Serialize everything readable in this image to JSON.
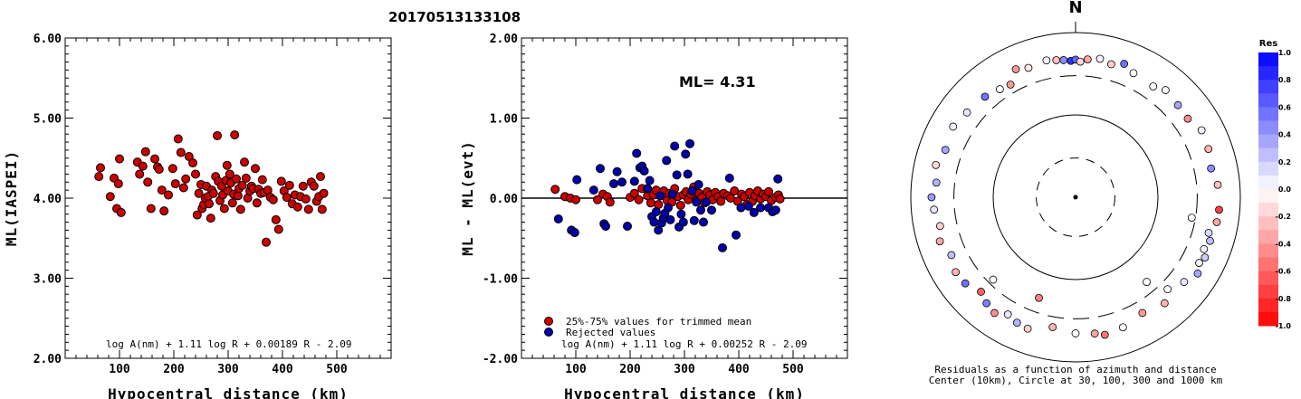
{
  "chart_data": [
    {
      "type": "scatter",
      "title": "20170513133108",
      "xlabel": "Hypocentral distance (km)",
      "ylabel": "ML(IASPEI)",
      "xlim": [
        0,
        600
      ],
      "ylim": [
        2.0,
        6.0
      ],
      "xticks": [
        "100",
        "200",
        "300",
        "400",
        "500"
      ],
      "yticks": [
        "2.00",
        "3.00",
        "4.00",
        "5.00",
        "6.00"
      ],
      "formula": "log A(nm) + 1.11 log R + 0.00189 R - 2.09",
      "marker_color": "#cc0000",
      "x": [
        62,
        65,
        83,
        90,
        95,
        98,
        100,
        103,
        133,
        137,
        143,
        148,
        152,
        158,
        165,
        170,
        173,
        178,
        182,
        190,
        198,
        203,
        208,
        213,
        218,
        222,
        228,
        235,
        240,
        243,
        246,
        250,
        252,
        255,
        258,
        260,
        263,
        265,
        268,
        270,
        273,
        277,
        280,
        282,
        285,
        288,
        290,
        293,
        296,
        298,
        300,
        303,
        305,
        308,
        310,
        312,
        315,
        318,
        320,
        323,
        326,
        330,
        333,
        336,
        340,
        343,
        346,
        350,
        353,
        356,
        360,
        363,
        366,
        370,
        373,
        378,
        383,
        388,
        393,
        398,
        403,
        408,
        413,
        418,
        423,
        428,
        433,
        438,
        443,
        448,
        453,
        458,
        463,
        467,
        470,
        473,
        476
      ],
      "y": [
        4.27,
        4.38,
        4.02,
        4.25,
        3.87,
        4.18,
        4.49,
        3.82,
        4.45,
        4.3,
        4.4,
        4.58,
        4.2,
        3.87,
        4.49,
        4.39,
        4.36,
        4.1,
        3.84,
        4.04,
        4.37,
        4.18,
        4.74,
        4.57,
        4.13,
        4.24,
        4.52,
        4.44,
        4.3,
        3.79,
        4.06,
        4.17,
        3.87,
        3.92,
        4.0,
        4.15,
        4.02,
        3.93,
        3.75,
        4.1,
        4.06,
        4.27,
        4.78,
        4.21,
        3.97,
        4.15,
        4.04,
        3.87,
        4.22,
        4.41,
        4.09,
        4.3,
        4.19,
        3.94,
        4.05,
        4.79,
        4.24,
        4.03,
        4.12,
        3.86,
        4.16,
        4.45,
        4.25,
        4.0,
        4.09,
        4.15,
        4.12,
        4.37,
        3.94,
        4.11,
        4.06,
        4.23,
        4.07,
        3.45,
        4.1,
        4.01,
        3.98,
        3.73,
        3.61,
        4.21,
        4.09,
        4.01,
        4.16,
        3.93,
        4.04,
        3.89,
        4.02,
        4.15,
        3.99,
        3.86,
        4.2,
        4.15,
        3.96,
        4.02,
        4.27,
        3.86,
        4.06
      ]
    },
    {
      "type": "scatter",
      "xlabel": "Hypocentral distance (km)",
      "ylabel": "ML - ML(evt)",
      "xlim": [
        0,
        600
      ],
      "ylim": [
        -2.0,
        2.0
      ],
      "xticks": [
        "100",
        "200",
        "300",
        "400",
        "500"
      ],
      "yticks": [
        "-2.00",
        "-1.00",
        "0.00",
        "1.00",
        "2.00"
      ],
      "ml_label": "ML= 4.31",
      "zero_line": 0.0,
      "formula": "log A(nm) + 1.11 log R + 0.00252 R - 2.09",
      "legend": {
        "position": "bottom-left",
        "entries": [
          {
            "label": "25%-75% values for trimmed mean",
            "color": "#cc0000"
          },
          {
            "label": "Rejected values",
            "color": "#0000aa"
          }
        ]
      },
      "series": [
        {
          "name": "25%-75% values for trimmed mean",
          "color": "#cc0000",
          "x": [
            62,
            80,
            90,
            100,
            140,
            150,
            158,
            163,
            200,
            208,
            216,
            222,
            232,
            238,
            243,
            248,
            252,
            256,
            262,
            268,
            272,
            277,
            282,
            288,
            293,
            298,
            303,
            307,
            312,
            317,
            322,
            327,
            332,
            337,
            342,
            347,
            352,
            357,
            362,
            367,
            372,
            380,
            385,
            392,
            398,
            405,
            410,
            415,
            420,
            425,
            430,
            435,
            440,
            445,
            450,
            455,
            460,
            468,
            473,
            476
          ],
          "y": [
            0.11,
            0.02,
            0.0,
            -0.02,
            -0.02,
            0.05,
            0.02,
            -0.05,
            0.01,
            0.06,
            -0.02,
            0.12,
            0.03,
            -0.06,
            0.04,
            0.1,
            -0.08,
            0.03,
            0.09,
            -0.03,
            0.06,
            -0.05,
            0.12,
            0.02,
            -0.09,
            0.04,
            0.08,
            -0.02,
            0.05,
            0.14,
            -0.03,
            0.06,
            0.01,
            -0.06,
            0.08,
            0.04,
            -0.02,
            0.07,
            0.02,
            -0.04,
            0.06,
            0.03,
            0.0,
            0.09,
            -0.04,
            0.05,
            0.02,
            -0.08,
            0.07,
            -0.04,
            0.03,
            0.09,
            -0.01,
            0.05,
            0.02,
            0.08,
            -0.03,
            0.01,
            0.04,
            -0.01
          ]
        },
        {
          "name": "Rejected values",
          "color": "#0000aa",
          "x": [
            68,
            92,
            98,
            102,
            133,
            145,
            152,
            155,
            170,
            176,
            185,
            195,
            208,
            212,
            218,
            222,
            226,
            232,
            236,
            240,
            244,
            248,
            252,
            255,
            258,
            261,
            264,
            267,
            270,
            274,
            278,
            282,
            286,
            290,
            294,
            298,
            302,
            306,
            310,
            314,
            318,
            322,
            326,
            330,
            335,
            340,
            350,
            370,
            383,
            395,
            404,
            418,
            428,
            440,
            455,
            462,
            468,
            472
          ],
          "y": [
            -0.26,
            -0.4,
            -0.43,
            0.23,
            0.1,
            0.37,
            -0.32,
            -0.35,
            0.18,
            0.33,
            0.2,
            -0.35,
            0.21,
            0.56,
            0.38,
            0.4,
            0.34,
            0.12,
            0.22,
            -0.23,
            -0.3,
            -0.17,
            -0.4,
            0.03,
            -0.31,
            -0.25,
            -0.19,
            0.47,
            -0.12,
            -0.27,
            0.05,
            0.65,
            0.29,
            -0.36,
            -0.2,
            -0.3,
            0.55,
            0.3,
            0.68,
            0.09,
            -0.28,
            -0.05,
            0.17,
            -0.15,
            -0.3,
            -0.05,
            -0.15,
            -0.62,
            0.25,
            -0.46,
            -0.12,
            -0.1,
            -0.18,
            -0.12,
            -0.12,
            -0.17,
            -0.15,
            0.24
          ]
        }
      ]
    },
    {
      "type": "scatter",
      "subtype": "polar",
      "north_label": "N",
      "caption": [
        "Residuals as a function of azimuth and distance",
        "Center (10km), Circle at 30, 100, 300 and 1000 km"
      ],
      "rings_km": [
        30,
        100,
        300,
        1000
      ],
      "residual_colorbar": {
        "title": "Res",
        "range": [
          -1.0,
          1.0
        ],
        "ticks": [
          "1.0",
          "0.8",
          "0.6",
          "0.4",
          "0.2",
          "0.0",
          "-0.2",
          "-0.4",
          "-0.6",
          "-0.8",
          "-1.0"
        ],
        "positive_color": "#0000ff",
        "negative_color": "#ff0000"
      },
      "stations": [
        {
          "azimuth": 352,
          "distance_km": 480,
          "residual": -0.25
        },
        {
          "azimuth": 355,
          "distance_km": 470,
          "residual": 0.45
        },
        {
          "azimuth": 358,
          "distance_km": 455,
          "residual": 0.8
        },
        {
          "azimuth": 0,
          "distance_km": 470,
          "residual": 0.6
        },
        {
          "azimuth": 2,
          "distance_km": 445,
          "residual": -0.15
        },
        {
          "azimuth": 5,
          "distance_km": 480,
          "residual": -0.35
        },
        {
          "azimuth": 348,
          "distance_km": 500,
          "residual": 0.05
        },
        {
          "azimuth": 340,
          "distance_km": 470,
          "residual": -0.1
        },
        {
          "azimuth": 335,
          "distance_km": 520,
          "residual": -0.4
        },
        {
          "azimuth": 10,
          "distance_km": 510,
          "residual": 0.05
        },
        {
          "azimuth": 15,
          "distance_km": 470,
          "residual": -0.2
        },
        {
          "azimuth": 20,
          "distance_km": 530,
          "residual": 0.55
        },
        {
          "azimuth": 25,
          "distance_km": 460,
          "residual": 0.0
        },
        {
          "azimuth": 35,
          "distance_km": 440,
          "residual": 0.0
        },
        {
          "azimuth": 40,
          "distance_km": 500,
          "residual": 0.0
        },
        {
          "azimuth": 48,
          "distance_km": 470,
          "residual": 0.35
        },
        {
          "azimuth": 55,
          "distance_km": 460,
          "residual": -0.45
        },
        {
          "azimuth": 62,
          "distance_km": 540,
          "residual": 0.05
        },
        {
          "azimuth": 70,
          "distance_km": 520,
          "residual": -0.3
        },
        {
          "azimuth": 78,
          "distance_km": 480,
          "residual": 0.45
        },
        {
          "azimuth": 85,
          "distance_km": 540,
          "residual": -0.25
        },
        {
          "azimuth": 95,
          "distance_km": 560,
          "residual": -0.75
        },
        {
          "azimuth": 100,
          "distance_km": 550,
          "residual": -0.35
        },
        {
          "azimuth": 105,
          "distance_km": 470,
          "residual": 0.15
        },
        {
          "azimuth": 108,
          "distance_km": 520,
          "residual": 0.25
        },
        {
          "azimuth": 112,
          "distance_km": 480,
          "residual": 0.05
        },
        {
          "azimuth": 115,
          "distance_km": 540,
          "residual": 0.2
        },
        {
          "azimuth": 118,
          "distance_km": 500,
          "residual": 0.05
        },
        {
          "azimuth": 122,
          "distance_km": 560,
          "residual": 0.35
        },
        {
          "azimuth": 128,
          "distance_km": 470,
          "residual": 0.1
        },
        {
          "azimuth": 135,
          "distance_km": 380,
          "residual": 0.0
        },
        {
          "azimuth": 140,
          "distance_km": 480,
          "residual": -0.3
        },
        {
          "azimuth": 150,
          "distance_km": 420,
          "residual": -0.4
        },
        {
          "azimuth": 160,
          "distance_km": 480,
          "residual": 0.0
        },
        {
          "azimuth": 168,
          "distance_km": 510,
          "residual": -0.55
        },
        {
          "azimuth": 172,
          "distance_km": 470,
          "residual": -0.35
        },
        {
          "azimuth": 180,
          "distance_km": 450,
          "residual": 0.0
        },
        {
          "azimuth": 190,
          "distance_km": 400,
          "residual": -0.3
        },
        {
          "azimuth": 200,
          "distance_km": 500,
          "residual": -0.2
        },
        {
          "azimuth": 205,
          "distance_km": 480,
          "residual": 0.3
        },
        {
          "azimuth": 210,
          "distance_km": 440,
          "residual": 0.1
        },
        {
          "azimuth": 215,
          "distance_km": 520,
          "residual": -0.45
        },
        {
          "azimuth": 220,
          "distance_km": 480,
          "residual": 0.5
        },
        {
          "azimuth": 225,
          "distance_km": 420,
          "residual": -0.6
        },
        {
          "azimuth": 232,
          "distance_km": 500,
          "residual": 0.55
        },
        {
          "azimuth": 238,
          "distance_km": 520,
          "residual": -0.3
        },
        {
          "azimuth": 245,
          "distance_km": 460,
          "residual": 0.25
        },
        {
          "azimuth": 252,
          "distance_km": 540,
          "residual": -0.35
        },
        {
          "azimuth": 258,
          "distance_km": 480,
          "residual": -0.2
        },
        {
          "azimuth": 265,
          "distance_km": 530,
          "residual": 0.1
        },
        {
          "azimuth": 270,
          "distance_km": 560,
          "residual": 0.4
        },
        {
          "azimuth": 276,
          "distance_km": 500,
          "residual": 0.3
        },
        {
          "azimuth": 283,
          "distance_km": 550,
          "residual": -0.15
        },
        {
          "azimuth": 290,
          "distance_km": 480,
          "residual": 0.35
        },
        {
          "azimuth": 300,
          "distance_km": 520,
          "residual": 0.05
        },
        {
          "azimuth": 308,
          "distance_km": 470,
          "residual": 0.1
        },
        {
          "azimuth": 318,
          "distance_km": 440,
          "residual": 0.55
        },
        {
          "azimuth": 325,
          "distance_km": 400,
          "residual": 0.0
        },
        {
          "azimuth": 330,
          "distance_km": 380,
          "residual": -0.4
        },
        {
          "azimuth": 200,
          "distance_km": 200,
          "residual": -0.5
        },
        {
          "azimuth": 225,
          "distance_km": 260,
          "residual": 0.0
        },
        {
          "azimuth": 140,
          "distance_km": 220,
          "residual": 0.0
        },
        {
          "azimuth": 100,
          "distance_km": 270,
          "residual": 0.0
        }
      ]
    }
  ]
}
